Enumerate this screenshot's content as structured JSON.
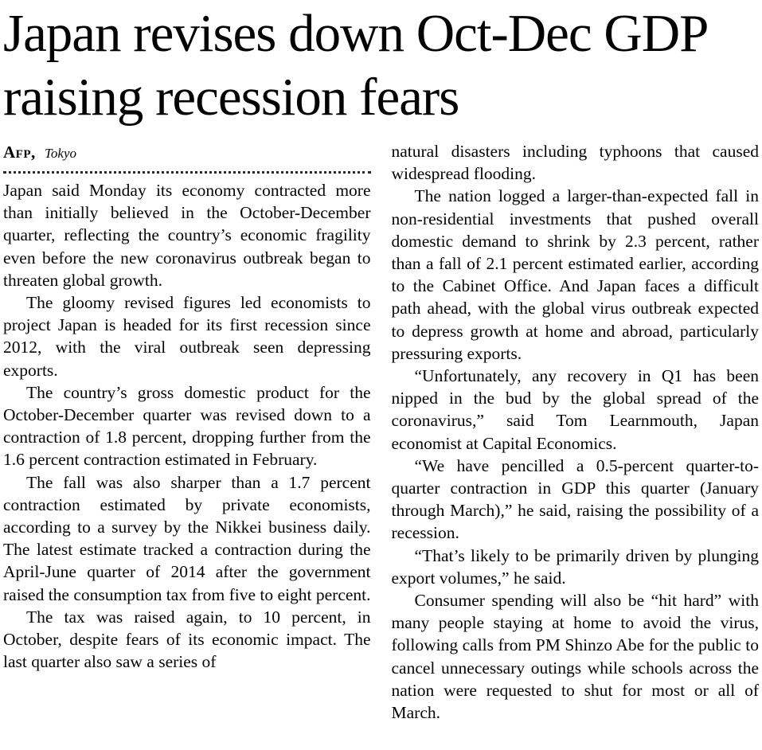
{
  "article": {
    "headline": "Japan revises down Oct-Dec GDP raising recession fears",
    "byline": {
      "agency": "Afp,",
      "location": "Tokyo"
    },
    "left_paragraphs": [
      "Japan said Monday its economy contracted more than initially believed in the October-December quarter, reflecting the country’s economic fragility even before the new coronavirus outbreak began to threaten global growth.",
      "The gloomy revised figures led economists to project Japan is headed for its first recession since 2012, with the viral outbreak seen depressing exports.",
      "The country’s gross domestic product for the October-December quarter was revised down to a contraction of 1.8 percent, dropping further from the 1.6 percent contraction estimated in February.",
      "The fall was also sharper than a 1.7 percent contraction estimated by private economists, according to a survey by the Nikkei business daily. The latest estimate tracked a contraction during the April-June quarter of 2014 after the government raised the consumption tax from five to eight percent.",
      "The tax was raised again, to 10 percent, in October, despite fears of its economic impact. The last quarter also saw a series of"
    ],
    "right_paragraphs": [
      "natural disasters including typhoons that caused widespread flooding.",
      "The nation logged a larger-than-expected fall in non-residential investments that pushed overall domestic demand to shrink by 2.3 percent, rather than a fall of 2.1 percent estimated earlier, according to the Cabinet Office. And Japan faces a difficult path ahead, with the global virus outbreak expected to depress growth at home and abroad, particularly pressuring exports.",
      "“Unfortunately, any recovery in Q1 has been nipped in the bud by the global spread of the coronavirus,” said Tom Learnmouth, Japan economist at Capital Economics.",
      "“We have pencilled a 0.5-percent quarter-to-quarter contraction in GDP this quarter (January through March),” he said, raising the possibility of a recession.",
      "“That’s likely to be primarily driven by plunging export volumes,” he said.",
      "Consumer spending will also be  “hit hard” with many people staying at home to avoid the virus, following calls from PM Shinzo Abe for the public to cancel unnecessary outings while schools across the nation were requested to shut for most or all of March."
    ]
  }
}
